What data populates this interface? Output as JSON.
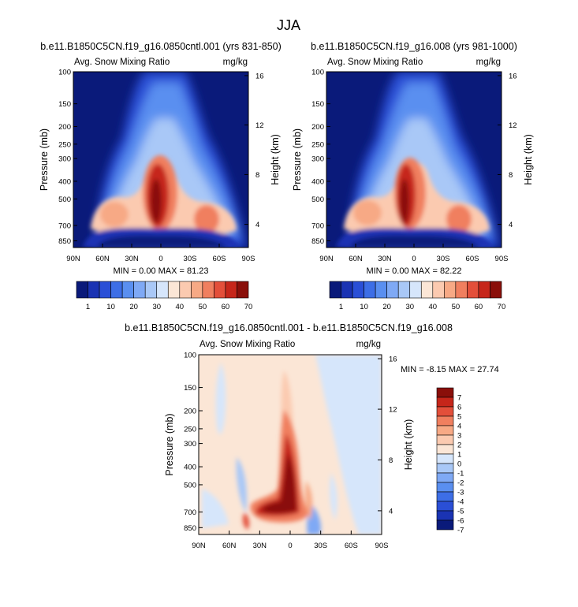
{
  "title": "JJA",
  "colors": {
    "abs_palette": [
      "#0a1a7a",
      "#1a33b3",
      "#2a4fd6",
      "#3d6ee6",
      "#5a8ff0",
      "#7fa9f5",
      "#a9c8f7",
      "#d6e6fb",
      "#fbe6d6",
      "#fbcab0",
      "#f7a985",
      "#f07f5f",
      "#e34f3a",
      "#c6261a",
      "#8a0f0a"
    ],
    "diff_palette": [
      "#0a1a7a",
      "#1a33b3",
      "#2a4fd6",
      "#3d6ee6",
      "#5a8ff0",
      "#7fa9f5",
      "#a9c8f7",
      "#d6e6fb",
      "#fbe6d6",
      "#fbcab0",
      "#f7a985",
      "#f07f5f",
      "#e34f3a",
      "#c6261a",
      "#8a0f0a"
    ]
  },
  "chart_data": [
    {
      "type": "heatmap",
      "title": "b.e11.B1850C5CN.f19_g16.0850cntl.001 (yrs 831-850)",
      "left_label": "Avg. Snow Mixing Ratio",
      "right_label": "mg/kg",
      "ylabel": "Pressure (mb)",
      "ylabel_right": "Height (km)",
      "xticks": [
        "90N",
        "60N",
        "30N",
        "0",
        "30S",
        "60S",
        "90S"
      ],
      "yticks": [
        "100",
        "150",
        "200",
        "250",
        "300",
        "400",
        "500",
        "700",
        "850"
      ],
      "ytick_values": [
        100,
        150,
        200,
        250,
        300,
        400,
        500,
        700,
        850
      ],
      "yticks_right": [
        "16",
        "12",
        "8",
        "4"
      ],
      "xlim": [
        90,
        -90
      ],
      "ylim": [
        100,
        925
      ],
      "min": "0.00",
      "max": "81.23",
      "stats_text": "MIN =   0.00  MAX =  81.23",
      "colorbar_labels": [
        "1",
        "10",
        "20",
        "30",
        "40",
        "50",
        "60",
        "70"
      ],
      "colorbar_levels": [
        1,
        5,
        10,
        15,
        20,
        25,
        30,
        35,
        40,
        45,
        50,
        55,
        60,
        65,
        70
      ]
    },
    {
      "type": "heatmap",
      "title": "b.e11.B1850C5CN.f19_g16.008 (yrs 981-1000)",
      "left_label": "Avg. Snow Mixing Ratio",
      "right_label": "mg/kg",
      "ylabel": "Pressure (mb)",
      "ylabel_right": "Height (km)",
      "xticks": [
        "90N",
        "60N",
        "30N",
        "0",
        "30S",
        "60S",
        "90S"
      ],
      "yticks": [
        "100",
        "150",
        "200",
        "250",
        "300",
        "400",
        "500",
        "700",
        "850"
      ],
      "ytick_values": [
        100,
        150,
        200,
        250,
        300,
        400,
        500,
        700,
        850
      ],
      "yticks_right": [
        "16",
        "12",
        "8",
        "4"
      ],
      "xlim": [
        90,
        -90
      ],
      "ylim": [
        100,
        925
      ],
      "min": "0.00",
      "max": "82.22",
      "stats_text": "MIN =   0.00  MAX =  82.22",
      "colorbar_labels": [
        "1",
        "10",
        "20",
        "30",
        "40",
        "50",
        "60",
        "70"
      ],
      "colorbar_levels": [
        1,
        5,
        10,
        15,
        20,
        25,
        30,
        35,
        40,
        45,
        50,
        55,
        60,
        65,
        70
      ]
    },
    {
      "type": "heatmap",
      "title": "b.e11.B1850C5CN.f19_g16.0850cntl.001 - b.e11.B1850C5CN.f19_g16.008",
      "left_label": "Avg. Snow Mixing Ratio",
      "right_label": "mg/kg",
      "ylabel": "Pressure (mb)",
      "ylabel_right": "Height (km)",
      "xticks": [
        "90N",
        "60N",
        "30N",
        "0",
        "30S",
        "60S",
        "90S"
      ],
      "yticks": [
        "100",
        "150",
        "200",
        "250",
        "300",
        "400",
        "500",
        "700",
        "850"
      ],
      "ytick_values": [
        100,
        150,
        200,
        250,
        300,
        400,
        500,
        700,
        850
      ],
      "yticks_right": [
        "16",
        "12",
        "8",
        "4"
      ],
      "xlim": [
        90,
        -90
      ],
      "ylim": [
        100,
        925
      ],
      "min": "-8.15",
      "max": "27.74",
      "stats_text": "MIN =  -8.15  MAX =  27.74",
      "colorbar_labels": [
        "7",
        "6",
        "5",
        "4",
        "3",
        "2",
        "1",
        "0",
        "-1",
        "-2",
        "-3",
        "-4",
        "-5",
        "-6",
        "-7"
      ]
    }
  ]
}
